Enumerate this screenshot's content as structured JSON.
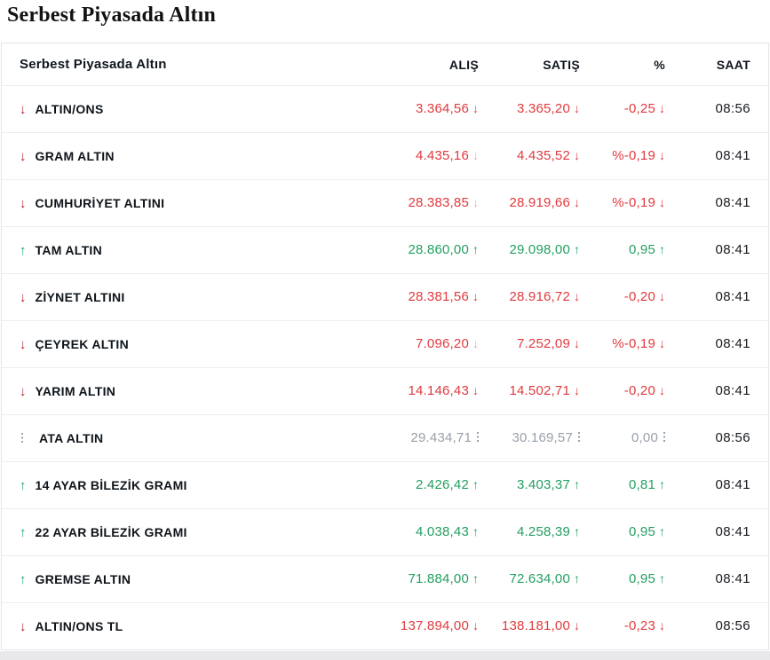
{
  "page": {
    "title": "Serbest Piyasada Altın"
  },
  "icons": {
    "down_arrow": "↓",
    "up_arrow": "↑"
  },
  "colors": {
    "value_down": "#e13a3e",
    "label_arrow_down": "#ae1f2d",
    "value_up": "#239f60",
    "neutral": "#98a0aa",
    "header_text": "#10161d",
    "row_divider": "#ededee"
  },
  "table": {
    "name": "Serbest Piyasada Altın",
    "columns": [
      "ALIŞ",
      "SATIŞ",
      "%",
      "SAAT"
    ],
    "rows": [
      {
        "name": "ALTIN/ONS",
        "trend": "down",
        "alis": "3.364,56",
        "satis": "3.365,20",
        "pct": "-0,25",
        "saat": "08:56",
        "alis_arrow": "solid"
      },
      {
        "name": "GRAM ALTIN",
        "trend": "down",
        "alis": "4.435,16",
        "satis": "4.435,52",
        "pct": "%-0,19",
        "saat": "08:41",
        "alis_arrow": "faded"
      },
      {
        "name": "CUMHURİYET ALTINI",
        "trend": "down",
        "alis": "28.383,85",
        "satis": "28.919,66",
        "pct": "%-0,19",
        "saat": "08:41",
        "alis_arrow": "faded"
      },
      {
        "name": "TAM ALTIN",
        "trend": "up",
        "alis": "28.860,00",
        "satis": "29.098,00",
        "pct": "0,95",
        "saat": "08:41",
        "alis_arrow": "solid"
      },
      {
        "name": "ZİYNET ALTINI",
        "trend": "down",
        "alis": "28.381,56",
        "satis": "28.916,72",
        "pct": "-0,20",
        "saat": "08:41",
        "alis_arrow": "solid"
      },
      {
        "name": "ÇEYREK ALTIN",
        "trend": "down",
        "alis": "7.096,20",
        "satis": "7.252,09",
        "pct": "%-0,19",
        "saat": "08:41",
        "alis_arrow": "faded"
      },
      {
        "name": "YARIM ALTIN",
        "trend": "down",
        "alis": "14.146,43",
        "satis": "14.502,71",
        "pct": "-0,20",
        "saat": "08:41",
        "alis_arrow": "solid"
      },
      {
        "name": "ATA ALTIN",
        "trend": "neutral",
        "alis": "29.434,71",
        "satis": "30.169,57",
        "pct": "0,00",
        "saat": "08:56",
        "alis_arrow": "solid"
      },
      {
        "name": "14 AYAR BİLEZİK GRAMI",
        "trend": "up",
        "alis": "2.426,42",
        "satis": "3.403,37",
        "pct": "0,81",
        "saat": "08:41",
        "alis_arrow": "solid"
      },
      {
        "name": "22 AYAR BİLEZİK GRAMI",
        "trend": "up",
        "alis": "4.038,43",
        "satis": "4.258,39",
        "pct": "0,95",
        "saat": "08:41",
        "alis_arrow": "solid"
      },
      {
        "name": "GREMSE ALTIN",
        "trend": "up",
        "alis": "71.884,00",
        "satis": "72.634,00",
        "pct": "0,95",
        "saat": "08:41",
        "alis_arrow": "solid"
      },
      {
        "name": "ALTIN/ONS TL",
        "trend": "down",
        "alis": "137.894,00",
        "satis": "138.181,00",
        "pct": "-0,23",
        "saat": "08:56",
        "alis_arrow": "solid"
      }
    ]
  }
}
